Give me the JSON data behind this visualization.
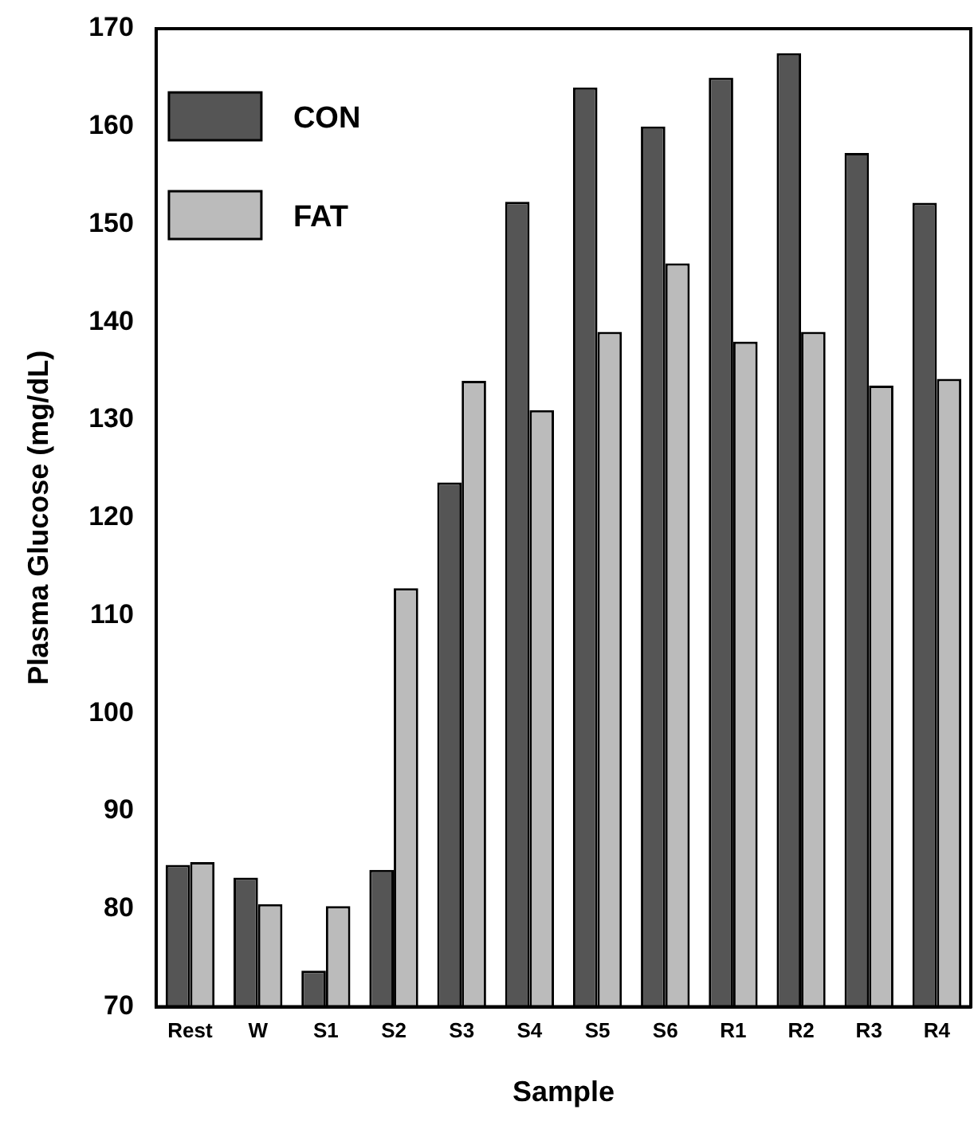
{
  "chart_data": {
    "type": "bar",
    "xlabel": "Sample",
    "ylabel": "Plasma Glucose (mg/dL)",
    "categories": [
      "Rest",
      "W",
      "S1",
      "S2",
      "S3",
      "S4",
      "S5",
      "S6",
      "R1",
      "R2",
      "R3",
      "R4"
    ],
    "series": [
      {
        "name": "CON",
        "color": "#555555",
        "values": [
          84.5,
          83.2,
          73.7,
          84,
          123.6,
          152.3,
          164,
          160,
          165,
          167.5,
          157.3,
          152.2
        ]
      },
      {
        "name": "FAT",
        "color": "#bbbbbb",
        "values": [
          84.8,
          80.5,
          80.3,
          112.8,
          134,
          131,
          139,
          146,
          138,
          139,
          133.5,
          134.2
        ]
      }
    ],
    "ylim": [
      70,
      170
    ],
    "yticks": [
      70,
      80,
      90,
      100,
      110,
      120,
      130,
      140,
      150,
      160,
      170
    ],
    "grid": false,
    "legend": "top left"
  }
}
